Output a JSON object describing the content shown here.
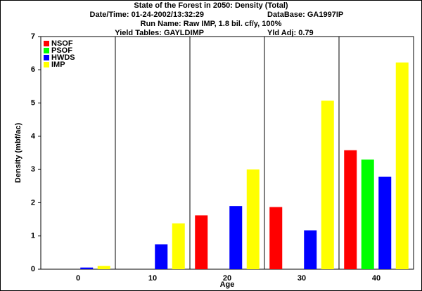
{
  "chart_data": {
    "type": "bar",
    "title": "State of the Forest in 2050: Density (Total)",
    "subtitle": [
      [
        "Date/Time: 01-24-2002/13:32:29",
        "DataBase: GA1997IP"
      ],
      [
        "Run Name: Raw IMP, 1.8 bil. cf/y, 100%"
      ],
      [
        "Yield Tables: GAYLDIMP",
        "Yld Adj: 0.79"
      ]
    ],
    "x_label": "Age",
    "y_label": "Density (mbf/ac)",
    "categories": [
      "0",
      "10",
      "20",
      "30",
      "40"
    ],
    "series": [
      {
        "name": "NSOF",
        "color": "#ff0000",
        "values": [
          0,
          0,
          1.62,
          1.87,
          3.58
        ]
      },
      {
        "name": "PSOF",
        "color": "#00ff00",
        "values": [
          0,
          0,
          0,
          0,
          3.3
        ]
      },
      {
        "name": "HWDS",
        "color": "#0000ff",
        "values": [
          0.05,
          0.75,
          1.9,
          1.17,
          2.78
        ]
      },
      {
        "name": "IMP",
        "color": "#ffff00",
        "values": [
          0.1,
          1.38,
          3.0,
          5.07,
          6.22
        ]
      }
    ],
    "ylim": [
      0,
      7
    ],
    "yticks": [
      0,
      1,
      2,
      3,
      4,
      5,
      6,
      7
    ],
    "legend": "upper-left"
  }
}
